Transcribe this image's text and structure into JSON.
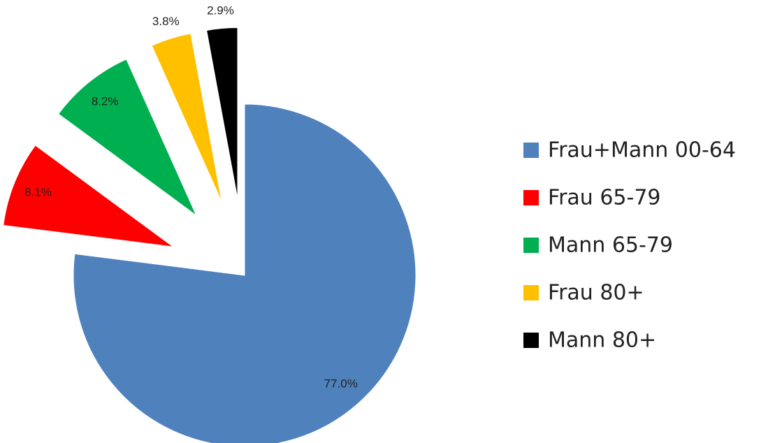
{
  "chart_data": {
    "type": "pie",
    "categories": [
      "Frau+Mann 00-64",
      "Frau 65-79",
      "Mann 65-79",
      "Frau 80+",
      "Mann 80+"
    ],
    "values": [
      77.0,
      8.1,
      8.2,
      3.8,
      2.9
    ],
    "value_labels": [
      "77.0%",
      "8.1%",
      "8.2%",
      "3.8%",
      "2.9%"
    ],
    "colors": [
      "#4f81bd",
      "#ff0000",
      "#00b050",
      "#ffc000",
      "#000000"
    ],
    "exploded": [
      false,
      true,
      true,
      true,
      true
    ],
    "legend": "right"
  }
}
